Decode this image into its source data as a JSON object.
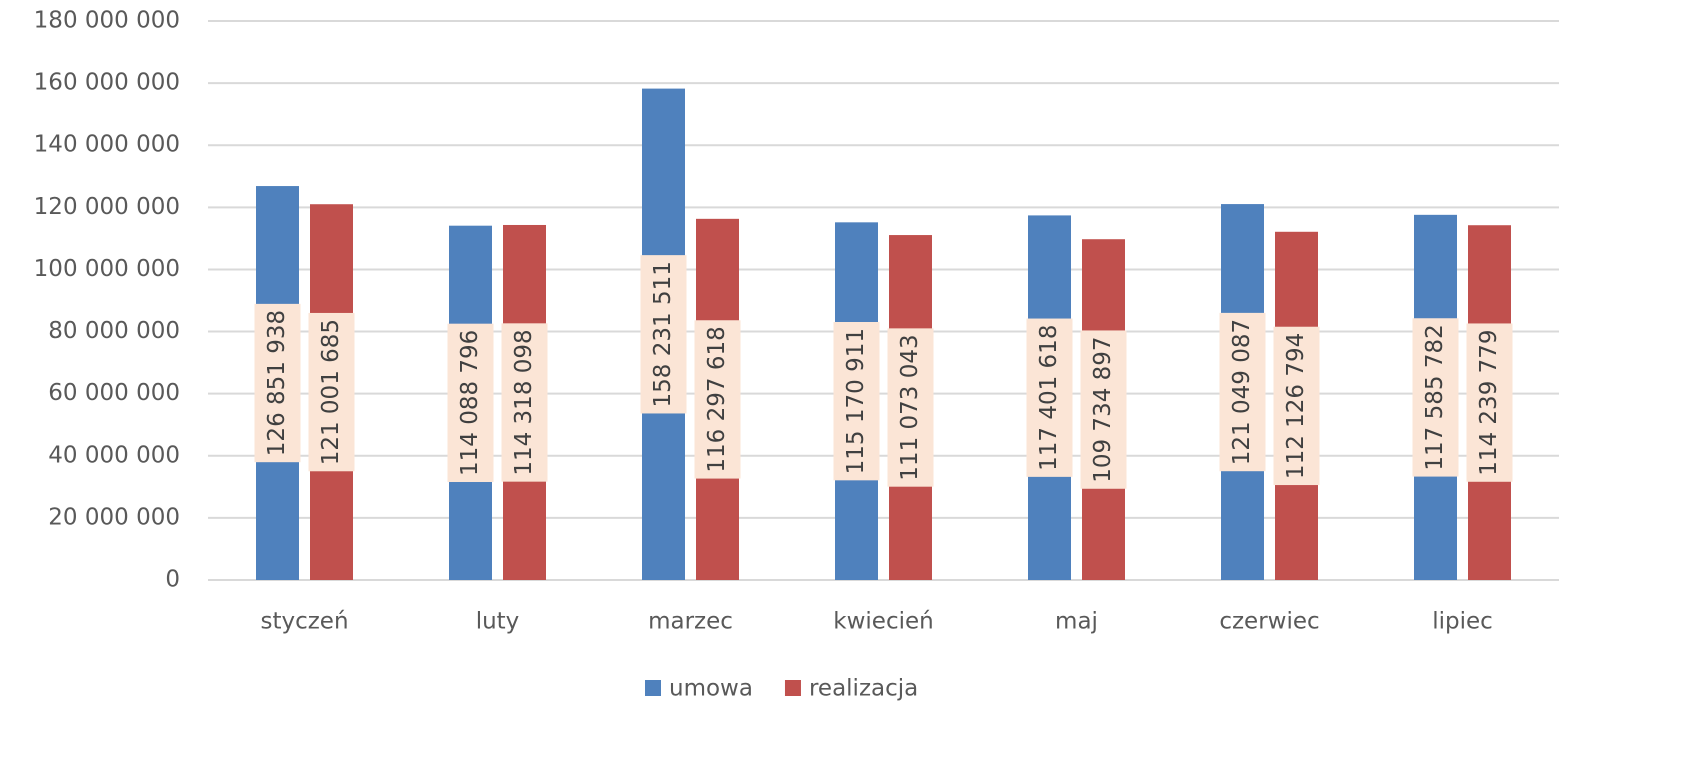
{
  "chart_data": {
    "type": "bar",
    "categories": [
      "styczeń",
      "luty",
      "marzec",
      "kwiecień",
      "maj",
      "czerwiec",
      "lipiec"
    ],
    "series": [
      {
        "name": "umowa",
        "color": "#4f81bd",
        "values": [
          126851938,
          114088796,
          158231511,
          115170911,
          117401618,
          121049087,
          117585782
        ],
        "value_labels": [
          "126 851 938",
          "114 088 796",
          "158 231 511",
          "115 170 911",
          "117 401 618",
          "121 049 087",
          "117 585 782"
        ]
      },
      {
        "name": "realizacja",
        "color": "#c0504d",
        "values": [
          121001685,
          114318098,
          116297618,
          111073043,
          109734897,
          112126794,
          114239779
        ],
        "value_labels": [
          "121 001 685",
          "114 318 098",
          "116 297 618",
          "111 073 043",
          "109 734 897",
          "112 126 794",
          "114 239 779"
        ]
      }
    ],
    "ylim": [
      0,
      180000000
    ],
    "yticks": [
      {
        "value": 0,
        "label": "0"
      },
      {
        "value": 20000000,
        "label": "20 000 000"
      },
      {
        "value": 40000000,
        "label": "40 000 000"
      },
      {
        "value": 60000000,
        "label": "60 000 000"
      },
      {
        "value": 80000000,
        "label": "80 000 000"
      },
      {
        "value": 100000000,
        "label": "100 000 000"
      },
      {
        "value": 120000000,
        "label": "120 000 000"
      },
      {
        "value": 140000000,
        "label": "140 000 000"
      },
      {
        "value": 160000000,
        "label": "160 000 000"
      },
      {
        "value": 180000000,
        "label": "180 000 000"
      }
    ],
    "grid": true,
    "legend": "bottom"
  }
}
